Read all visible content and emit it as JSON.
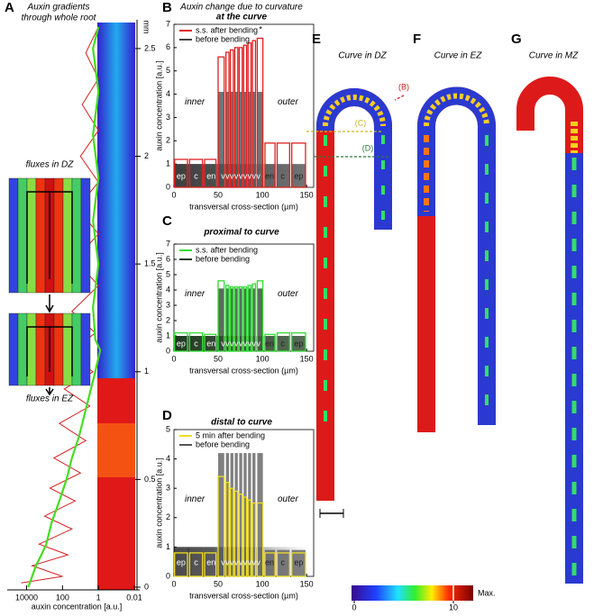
{
  "chart_data": [
    {
      "type": "line",
      "panel_label": "A",
      "title_lines": [
        "Auxin gradients",
        "through whole root"
      ],
      "x_label": "auxin concentration [a.u.]",
      "y_unit": "mm",
      "xscale": "log",
      "xlim": [
        30000,
        0.005
      ],
      "xticks": [
        10000,
        100,
        1,
        0.01
      ],
      "ylim": [
        0,
        2.6
      ],
      "yticks": [
        0,
        0.5,
        1,
        1.5,
        2,
        2.5
      ],
      "series": [
        {
          "color": "#d42020",
          "x": [
            20000,
            100,
            5000,
            50,
            2000,
            30,
            1000,
            20,
            500,
            10,
            300,
            5,
            150,
            3,
            80,
            2,
            50,
            1.5,
            30,
            1,
            20,
            1,
            15,
            1,
            10,
            1,
            8,
            1,
            5,
            1
          ],
          "values": [
            0.02,
            0.05,
            0.1,
            0.15,
            0.2,
            0.27,
            0.33,
            0.4,
            0.46,
            0.53,
            0.6,
            0.68,
            0.76,
            0.84,
            0.92,
            1.0,
            1.08,
            1.18,
            1.28,
            1.4,
            1.52,
            1.64,
            1.76,
            1.88,
            2.0,
            2.12,
            2.24,
            2.36,
            2.48,
            2.6
          ]
        },
        {
          "color": "#44dd22",
          "x": [
            8000,
            3000,
            1500,
            800,
            400,
            150,
            60,
            30,
            12,
            6,
            3,
            1.5,
            0.8,
            1.5,
            2,
            1,
            2,
            1,
            2,
            1,
            2,
            1
          ],
          "values": [
            0.0,
            0.1,
            0.15,
            0.2,
            0.3,
            0.4,
            0.5,
            0.6,
            0.7,
            0.8,
            0.9,
            1.0,
            1.1,
            1.15,
            1.3,
            1.5,
            1.7,
            1.9,
            2.1,
            2.3,
            2.5,
            2.6
          ]
        }
      ],
      "diagrams": [
        "fluxes in DZ",
        "fluxes in EZ"
      ]
    },
    {
      "type": "bar",
      "panel_label": "B",
      "suptitle": "Auxin change due to curvature",
      "title": "at the curve",
      "x_label": "transversal cross-section (µm)",
      "y_label": "auxin concentration [a.u.]",
      "annotations": [
        "inner",
        "outer",
        "*"
      ],
      "categories": [
        "ep",
        "c",
        "en",
        "v",
        "v",
        "v",
        "v",
        "v",
        "v",
        "v",
        "v",
        "v",
        "en",
        "c",
        "ep"
      ],
      "x": [
        8,
        25,
        42,
        55.5,
        60.5,
        65.5,
        70.5,
        75.5,
        80.5,
        85.5,
        90.5,
        95.5,
        108,
        123,
        141
      ],
      "xlim": [
        0,
        158
      ],
      "xticks": [
        0,
        50,
        100,
        150
      ],
      "ylim": [
        0,
        7
      ],
      "yticks": [
        0,
        1,
        2,
        3,
        4,
        5,
        6,
        7
      ],
      "series": [
        {
          "name": "s.s. after bending",
          "color": "#e02020",
          "style": "outline",
          "values": [
            1.2,
            1.2,
            1.2,
            5.6,
            5.8,
            5.9,
            6.0,
            6.0,
            6.1,
            6.2,
            6.3,
            6.4,
            1.9,
            1.9,
            1.9
          ]
        },
        {
          "name": "before bending",
          "color": "#444444",
          "style": "filled",
          "values": [
            1,
            1,
            1,
            4.1,
            4.1,
            4.1,
            4.1,
            4.1,
            4.1,
            4.1,
            4.1,
            4.1,
            1,
            1,
            1
          ]
        }
      ]
    },
    {
      "type": "bar",
      "panel_label": "C",
      "title": "proximal to curve",
      "x_label": "transversal cross-section (µm)",
      "y_label": "auxin concentration [a.u.]",
      "annotations": [
        "inner",
        "outer"
      ],
      "categories": [
        "ep",
        "c",
        "en",
        "v",
        "v",
        "v",
        "v",
        "v",
        "v",
        "v",
        "v",
        "v",
        "en",
        "c",
        "ep"
      ],
      "x": [
        8,
        25,
        42,
        55.5,
        60.5,
        65.5,
        70.5,
        75.5,
        80.5,
        85.5,
        90.5,
        95.5,
        108,
        123,
        141
      ],
      "xlim": [
        0,
        158
      ],
      "xticks": [
        0,
        50,
        100,
        150
      ],
      "ylim": [
        0,
        7
      ],
      "yticks": [
        0,
        1,
        2,
        3,
        4,
        5,
        6,
        7
      ],
      "series": [
        {
          "name": "s.s. after bending",
          "color": "#33dd33",
          "style": "outline",
          "values": [
            1.2,
            1.2,
            1.1,
            4.6,
            4.3,
            4.2,
            4.2,
            4.2,
            4.2,
            4.3,
            4.4,
            4.6,
            1.1,
            1.2,
            1.2
          ]
        },
        {
          "name": "before bending",
          "color": "#1f3d1f",
          "style": "filled",
          "values": [
            1,
            1,
            1,
            4.1,
            4.1,
            4.1,
            4.1,
            4.1,
            4.1,
            4.1,
            4.1,
            4.1,
            1,
            1,
            1
          ]
        }
      ]
    },
    {
      "type": "bar",
      "panel_label": "D",
      "title": "distal to curve",
      "x_label": "transversal cross-section (µm)",
      "y_label": "auxin concentration [a.u.]",
      "annotations": [
        "inner",
        "outer"
      ],
      "categories": [
        "ep",
        "c",
        "en",
        "v",
        "v",
        "v",
        "v",
        "v",
        "v",
        "v",
        "v",
        "v",
        "en",
        "c",
        "ep"
      ],
      "x": [
        8,
        25,
        42,
        55.5,
        60.5,
        65.5,
        70.5,
        75.5,
        80.5,
        85.5,
        90.5,
        95.5,
        108,
        123,
        141
      ],
      "xlim": [
        0,
        158
      ],
      "xticks": [
        0,
        50,
        100,
        150
      ],
      "ylim": [
        0,
        5
      ],
      "yticks": [
        0,
        1,
        2,
        3,
        4,
        5
      ],
      "series": [
        {
          "name": "5 min after bending",
          "color": "#eedd22",
          "style": "outline",
          "values": [
            0.8,
            0.8,
            0.8,
            3.4,
            3.2,
            3.0,
            2.9,
            2.8,
            2.7,
            2.6,
            2.5,
            2.5,
            0.8,
            0.8,
            0.8
          ]
        },
        {
          "name": "before bending",
          "color": "#555555",
          "style": "filled",
          "values": [
            1,
            1,
            1,
            4.2,
            4.2,
            4.2,
            4.2,
            4.2,
            4.2,
            4.2,
            4.2,
            4.2,
            0.9,
            0.9,
            0.9
          ]
        }
      ]
    }
  ],
  "roots": [
    {
      "panel_label": "E",
      "title": "Curve in DZ",
      "markers": [
        "(B)",
        "(C)",
        "(D)"
      ]
    },
    {
      "panel_label": "F",
      "title": "Curve in EZ"
    },
    {
      "panel_label": "G",
      "title": "Curve in MZ"
    }
  ],
  "colorbar": {
    "ticks": [
      0,
      10
    ],
    "max_label": "Max."
  }
}
